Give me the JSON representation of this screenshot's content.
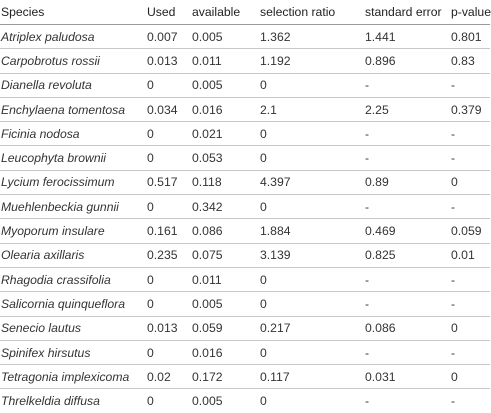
{
  "headers": {
    "species": "Species",
    "used": "Used",
    "available": "available",
    "selection_ratio": "selection ratio",
    "standard_error": "standard error",
    "p_value": "p-value"
  },
  "rows": [
    {
      "species": "Atriplex paludosa",
      "used": "0.007",
      "available": "0.005",
      "selection_ratio": "1.362",
      "standard_error": "1.441",
      "p_value": "0.801"
    },
    {
      "species": "Carpobrotus rossii",
      "used": "0.013",
      "available": "0.011",
      "selection_ratio": "1.192",
      "standard_error": "0.896",
      "p_value": "0.83"
    },
    {
      "species": "Dianella revoluta",
      "used": "0",
      "available": "0.005",
      "selection_ratio": "0",
      "standard_error": "-",
      "p_value": "-"
    },
    {
      "species": "Enchylaena tomentosa",
      "used": "0.034",
      "available": "0.016",
      "selection_ratio": "2.1",
      "standard_error": "2.25",
      "p_value": "0.379"
    },
    {
      "species": "Ficinia nodosa",
      "used": "0",
      "available": "0.021",
      "selection_ratio": "0",
      "standard_error": "-",
      "p_value": "-"
    },
    {
      "species": "Leucophyta brownii",
      "used": "0",
      "available": "0.053",
      "selection_ratio": "0",
      "standard_error": "-",
      "p_value": "-"
    },
    {
      "species": "Lycium ferocissimum",
      "used": "0.517",
      "available": "0.118",
      "selection_ratio": "4.397",
      "standard_error": "0.89",
      "p_value": "0"
    },
    {
      "species": "Muehlenbeckia gunnii",
      "used": "0",
      "available": "0.342",
      "selection_ratio": "0",
      "standard_error": "-",
      "p_value": "-"
    },
    {
      "species": "Myoporum insulare",
      "used": "0.161",
      "available": "0.086",
      "selection_ratio": "1.884",
      "standard_error": "0.469",
      "p_value": "0.059"
    },
    {
      "species": "Olearia axillaris",
      "used": "0.235",
      "available": "0.075",
      "selection_ratio": "3.139",
      "standard_error": "0.825",
      "p_value": "0.01"
    },
    {
      "species": "Rhagodia crassifolia",
      "used": "0",
      "available": "0.011",
      "selection_ratio": "0",
      "standard_error": "-",
      "p_value": "-"
    },
    {
      "species": "Salicornia quinqueflora",
      "used": "0",
      "available": "0.005",
      "selection_ratio": "0",
      "standard_error": "-",
      "p_value": "-"
    },
    {
      "species": "Senecio lautus",
      "used": "0.013",
      "available": "0.059",
      "selection_ratio": "0.217",
      "standard_error": "0.086",
      "p_value": "0"
    },
    {
      "species": "Spinifex hirsutus",
      "used": "0",
      "available": "0.016",
      "selection_ratio": "0",
      "standard_error": "-",
      "p_value": "-"
    },
    {
      "species": "Tetragonia implexicoma",
      "used": "0.02",
      "available": "0.172",
      "selection_ratio": "0.117",
      "standard_error": "0.031",
      "p_value": "0"
    },
    {
      "species": "Threlkeldia diffusa",
      "used": "0",
      "available": "0.005",
      "selection_ratio": "0",
      "standard_error": "-",
      "p_value": "-"
    }
  ]
}
